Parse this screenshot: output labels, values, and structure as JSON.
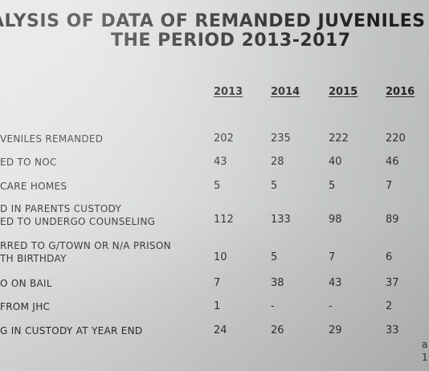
{
  "title_line1": "ALYSIS OF DATA OF REMANDED JUVENILES",
  "title_line2": "THE PERIOD 2013-2017",
  "years": [
    "2013",
    "2014",
    "2015",
    "2016"
  ],
  "rows": [
    {
      "label": "VENILES REMANDED",
      "values": [
        "202",
        "235",
        "222",
        "220"
      ]
    },
    {
      "label": "ED TO NOC",
      "values": [
        "43",
        "28",
        "40",
        "46"
      ]
    },
    {
      "label": "CARE HOMES",
      "values": [
        "5",
        "5",
        "5",
        "7"
      ]
    },
    {
      "label": "D IN PARENTS CUSTODY\nED TO UNDERGO COUNSELING",
      "values": [
        "112",
        "133",
        "98",
        "89"
      ]
    },
    {
      "label": "RRED TO G/TOWN OR N/A PRISON\nTH BIRTHDAY",
      "values": [
        "10",
        "5",
        "7",
        "6"
      ]
    },
    {
      "label": "O ON BAIL",
      "values": [
        "7",
        "38",
        "43",
        "37"
      ]
    },
    {
      "label": "FROM JHC",
      "values": [
        "1",
        "-",
        "-",
        "2"
      ]
    },
    {
      "label": "G IN CUSTODY AT YEAR END",
      "values": [
        "24",
        "26",
        "29",
        "33"
      ]
    }
  ],
  "margin_notes": [
    "a",
    "1"
  ]
}
